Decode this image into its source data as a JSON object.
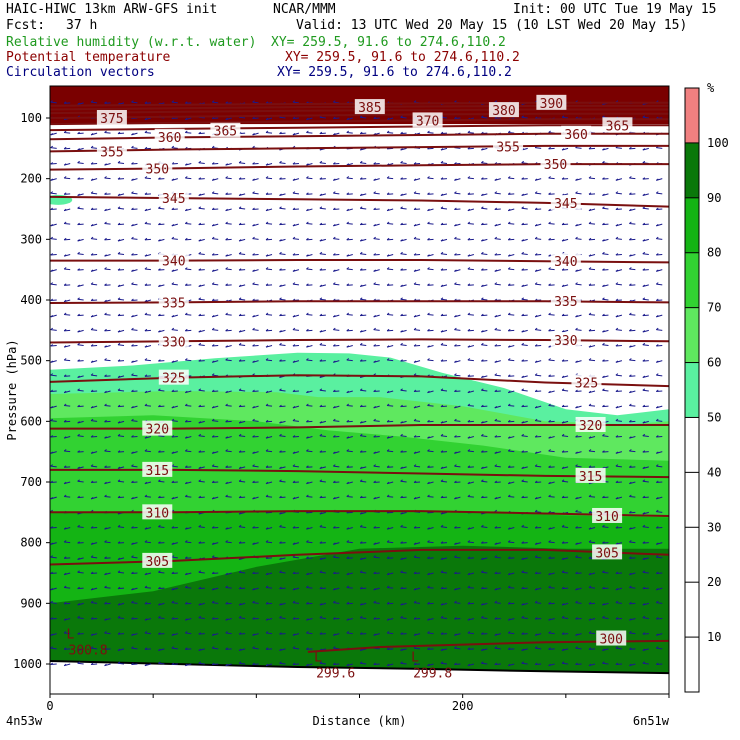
{
  "header": {
    "title": "HAIC-HIWC 13km ARW-GFS init",
    "model": "NCAR/MMM",
    "init": "Init: 00 UTC Tue 19 May 15",
    "fcst_label": "Fcst:",
    "fcst_value": "37 h",
    "valid": "Valid: 13 UTC Wed 20 May 15 (10 LST Wed 20 May 15)",
    "fields": [
      {
        "name": "Relative humidity (w.r.t. water)",
        "xy": "XY= 259.5, 91.6 to 274.6,110.2",
        "color": "#1f9a1f"
      },
      {
        "name": "Potential temperature",
        "xy": "XY= 259.5, 91.6 to 274.6,110.2",
        "color": "#8b0000"
      },
      {
        "name": "Circulation vectors",
        "xy": "XY= 259.5, 91.6 to 274.6,110.2",
        "color": "#000080"
      }
    ]
  },
  "chart_data": {
    "type": "heatmap",
    "xlabel": "Distance (km)",
    "ylabel": "Pressure (hPa)",
    "xlim": [
      0,
      300
    ],
    "ylim": [
      1050,
      50
    ],
    "x_ticks": [
      0,
      200
    ],
    "y_ticks": [
      100,
      200,
      300,
      400,
      500,
      600,
      700,
      800,
      900,
      1000
    ],
    "x_end_labels": [
      "4n53w",
      "6n51w"
    ],
    "colorbar": {
      "unit": "%",
      "levels": [
        10,
        20,
        30,
        40,
        50,
        60,
        70,
        80,
        90,
        100
      ],
      "bands": [
        {
          "from": 50,
          "to": 60,
          "color": "#5af0a0"
        },
        {
          "from": 60,
          "to": 70,
          "color": "#5fe85f"
        },
        {
          "from": 70,
          "to": 80,
          "color": "#32d232"
        },
        {
          "from": 80,
          "to": 90,
          "color": "#14b414"
        },
        {
          "from": 90,
          "to": 100,
          "color": "#0a780a"
        },
        {
          "from": 100,
          "to": 110,
          "color": "#f08080"
        }
      ]
    },
    "rh_regions": [
      {
        "level": 50,
        "top": [
          [
            0,
            515
          ],
          [
            40,
            508
          ],
          [
            80,
            496
          ],
          [
            120,
            487
          ],
          [
            145,
            488
          ],
          [
            165,
            495
          ],
          [
            190,
            520
          ],
          [
            220,
            545
          ],
          [
            250,
            580
          ],
          [
            275,
            590
          ],
          [
            300,
            580
          ]
        ]
      },
      {
        "level": 60,
        "top": [
          [
            0,
            555
          ],
          [
            60,
            550
          ],
          [
            110,
            552
          ],
          [
            130,
            560
          ],
          [
            160,
            560
          ],
          [
            200,
            575
          ],
          [
            240,
            600
          ],
          [
            280,
            605
          ],
          [
            300,
            600
          ]
        ]
      },
      {
        "level": 70,
        "top": [
          [
            0,
            595
          ],
          [
            50,
            590
          ],
          [
            100,
            600
          ],
          [
            135,
            615
          ],
          [
            170,
            625
          ],
          [
            210,
            640
          ],
          [
            250,
            660
          ],
          [
            300,
            665
          ]
        ]
      },
      {
        "level": 80,
        "top": [
          [
            0,
            750
          ],
          [
            50,
            748
          ],
          [
            100,
            750
          ],
          [
            150,
            748
          ],
          [
            200,
            748
          ],
          [
            250,
            755
          ],
          [
            300,
            758
          ]
        ]
      },
      {
        "level": 90,
        "top": [
          [
            0,
            900
          ],
          [
            50,
            880
          ],
          [
            100,
            840
          ],
          [
            150,
            810
          ],
          [
            200,
            805
          ],
          [
            250,
            810
          ],
          [
            300,
            810
          ]
        ]
      }
    ],
    "theta_lines": [
      {
        "value": 305,
        "points": [
          [
            0,
            836
          ],
          [
            60,
            830
          ],
          [
            120,
            820
          ],
          [
            180,
            812
          ],
          [
            240,
            812
          ],
          [
            300,
            820
          ]
        ]
      },
      {
        "value": 310,
        "points": [
          [
            0,
            750
          ],
          [
            60,
            750
          ],
          [
            120,
            748
          ],
          [
            180,
            748
          ],
          [
            240,
            752
          ],
          [
            300,
            756
          ]
        ]
      },
      {
        "value": 315,
        "points": [
          [
            0,
            680
          ],
          [
            60,
            680
          ],
          [
            120,
            682
          ],
          [
            180,
            686
          ],
          [
            240,
            690
          ],
          [
            300,
            692
          ]
        ]
      },
      {
        "value": 320,
        "points": [
          [
            0,
            612
          ],
          [
            60,
            612
          ],
          [
            120,
            610
          ],
          [
            180,
            606
          ],
          [
            240,
            606
          ],
          [
            300,
            606
          ]
        ]
      },
      {
        "value": 325,
        "points": [
          [
            0,
            535
          ],
          [
            60,
            528
          ],
          [
            120,
            524
          ],
          [
            180,
            526
          ],
          [
            240,
            536
          ],
          [
            300,
            542
          ]
        ]
      },
      {
        "value": 330,
        "points": [
          [
            0,
            470
          ],
          [
            60,
            468
          ],
          [
            120,
            466
          ],
          [
            180,
            465
          ],
          [
            240,
            466
          ],
          [
            300,
            468
          ]
        ]
      },
      {
        "value": 335,
        "points": [
          [
            0,
            405
          ],
          [
            60,
            404
          ],
          [
            120,
            402
          ],
          [
            180,
            402
          ],
          [
            240,
            402
          ],
          [
            300,
            404
          ]
        ]
      },
      {
        "value": 340,
        "points": [
          [
            0,
            335
          ],
          [
            60,
            335
          ],
          [
            120,
            334
          ],
          [
            180,
            334
          ],
          [
            240,
            336
          ],
          [
            300,
            338
          ]
        ]
      },
      {
        "value": 345,
        "points": [
          [
            0,
            230
          ],
          [
            60,
            232
          ],
          [
            120,
            234
          ],
          [
            180,
            236
          ],
          [
            240,
            240
          ],
          [
            300,
            246
          ]
        ]
      },
      {
        "value": 350,
        "points": [
          [
            0,
            185
          ],
          [
            60,
            183
          ],
          [
            120,
            180
          ],
          [
            180,
            178
          ],
          [
            240,
            176
          ],
          [
            300,
            176
          ]
        ]
      },
      {
        "value": 355,
        "points": [
          [
            0,
            155
          ],
          [
            60,
            152
          ],
          [
            120,
            150
          ],
          [
            180,
            148
          ],
          [
            240,
            146
          ],
          [
            300,
            146
          ]
        ]
      },
      {
        "value": 360,
        "points": [
          [
            0,
            135
          ],
          [
            60,
            132
          ],
          [
            120,
            130
          ],
          [
            180,
            128
          ],
          [
            240,
            126
          ],
          [
            300,
            126
          ]
        ]
      },
      {
        "value": 365,
        "points": [
          [
            0,
            120
          ],
          [
            60,
            118
          ],
          [
            120,
            116
          ],
          [
            180,
            114
          ],
          [
            240,
            112
          ],
          [
            300,
            112
          ]
        ]
      },
      {
        "value": 370,
        "points": [
          [
            0,
            110
          ],
          [
            60,
            108
          ],
          [
            120,
            106
          ],
          [
            180,
            104
          ],
          [
            240,
            102
          ],
          [
            300,
            102
          ]
        ]
      },
      {
        "value": 375,
        "points": [
          [
            0,
            100
          ],
          [
            60,
            98
          ],
          [
            120,
            96
          ],
          [
            180,
            94
          ],
          [
            240,
            93
          ],
          [
            300,
            93
          ]
        ]
      },
      {
        "value": 380,
        "points": [
          [
            0,
            92
          ],
          [
            60,
            90
          ],
          [
            120,
            88
          ],
          [
            180,
            87
          ],
          [
            240,
            86
          ],
          [
            300,
            86
          ]
        ]
      },
      {
        "value": 385,
        "points": [
          [
            0,
            86
          ],
          [
            60,
            84
          ],
          [
            120,
            82
          ],
          [
            180,
            81
          ],
          [
            240,
            80
          ],
          [
            300,
            80
          ]
        ]
      },
      {
        "value": 390,
        "points": [
          [
            0,
            80
          ],
          [
            60,
            78
          ],
          [
            120,
            77
          ],
          [
            180,
            76
          ],
          [
            240,
            75
          ],
          [
            300,
            75
          ]
        ]
      }
    ],
    "theta_labels": [
      {
        "text": "375",
        "x": 30,
        "p": 100
      },
      {
        "text": "360",
        "x": 58,
        "p": 131
      },
      {
        "text": "365",
        "x": 85,
        "p": 121
      },
      {
        "text": "355",
        "x": 30,
        "p": 155
      },
      {
        "text": "350",
        "x": 52,
        "p": 183
      },
      {
        "text": "345",
        "x": 60,
        "p": 232
      },
      {
        "text": "340",
        "x": 60,
        "p": 335
      },
      {
        "text": "335",
        "x": 60,
        "p": 404
      },
      {
        "text": "330",
        "x": 60,
        "p": 468
      },
      {
        "text": "325",
        "x": 60,
        "p": 528
      },
      {
        "text": "320",
        "x": 52,
        "p": 612
      },
      {
        "text": "315",
        "x": 52,
        "p": 680
      },
      {
        "text": "310",
        "x": 52,
        "p": 750
      },
      {
        "text": "305",
        "x": 52,
        "p": 830
      },
      {
        "text": "385",
        "x": 155,
        "p": 82
      },
      {
        "text": "370",
        "x": 183,
        "p": 104
      },
      {
        "text": "380",
        "x": 220,
        "p": 87
      },
      {
        "text": "355",
        "x": 222,
        "p": 147
      },
      {
        "text": "390",
        "x": 243,
        "p": 75
      },
      {
        "text": "350",
        "x": 245,
        "p": 176
      },
      {
        "text": "360",
        "x": 255,
        "p": 126
      },
      {
        "text": "365",
        "x": 275,
        "p": 112
      },
      {
        "text": "345",
        "x": 250,
        "p": 240
      },
      {
        "text": "340",
        "x": 250,
        "p": 336
      },
      {
        "text": "335",
        "x": 250,
        "p": 402
      },
      {
        "text": "330",
        "x": 250,
        "p": 466
      },
      {
        "text": "325",
        "x": 260,
        "p": 536
      },
      {
        "text": "320",
        "x": 262,
        "p": 606
      },
      {
        "text": "315",
        "x": 262,
        "p": 690
      },
      {
        "text": "310",
        "x": 270,
        "p": 756
      },
      {
        "text": "305",
        "x": 270,
        "p": 816
      },
      {
        "text": "300",
        "x": 272,
        "p": 958
      }
    ],
    "theta_300": {
      "value": 300,
      "points": [
        [
          125,
          980
        ],
        [
          160,
          972
        ],
        [
          200,
          968
        ],
        [
          240,
          964
        ],
        [
          300,
          962
        ]
      ]
    },
    "minima": [
      {
        "mark": "L",
        "value": "300.8",
        "x": 8,
        "p": 968
      },
      {
        "mark": "L",
        "value": "299.6",
        "x": 128,
        "p": 1006
      },
      {
        "mark": "L",
        "value": "299.8",
        "x": 175,
        "p": 1006
      }
    ],
    "surface": [
      [
        0,
        995
      ],
      [
        60,
        1000
      ],
      [
        120,
        1005
      ],
      [
        180,
        1008
      ],
      [
        240,
        1012
      ],
      [
        300,
        1015
      ]
    ],
    "vector_wind": {
      "u": -6,
      "v": 0.5
    }
  }
}
